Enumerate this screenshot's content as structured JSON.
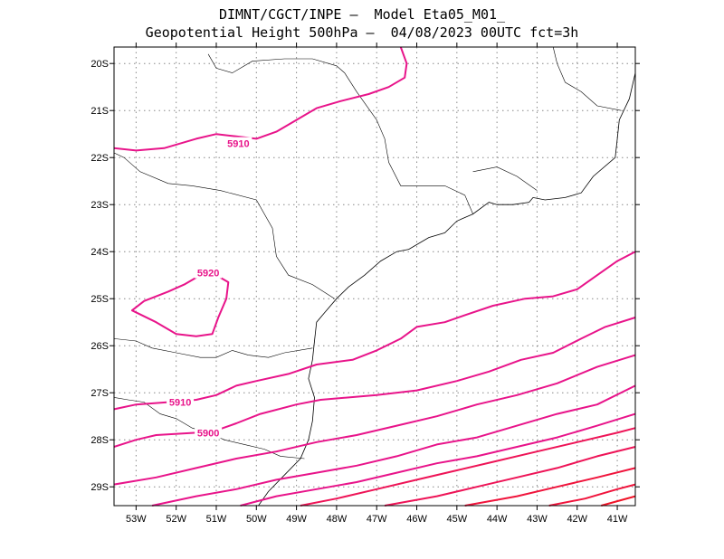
{
  "title_line1": "DIMNT/CGCT/INPE –  Model Eta05_M01_",
  "title_line2": "Geopotential Height 500hPa –  04/08/2023 00UTC fct=3h",
  "map": {
    "lon_range": [
      -53.55,
      -40.55
    ],
    "lat_range": [
      -29.4,
      -19.65
    ],
    "lat_ticks": [
      {
        "value": -20,
        "label": "20S"
      },
      {
        "value": -21,
        "label": "21S"
      },
      {
        "value": -22,
        "label": "22S"
      },
      {
        "value": -23,
        "label": "23S"
      },
      {
        "value": -24,
        "label": "24S"
      },
      {
        "value": -25,
        "label": "25S"
      },
      {
        "value": -26,
        "label": "26S"
      },
      {
        "value": -27,
        "label": "27S"
      },
      {
        "value": -28,
        "label": "28S"
      },
      {
        "value": -29,
        "label": "29S"
      }
    ],
    "lon_ticks": [
      {
        "value": -53,
        "label": "53W"
      },
      {
        "value": -52,
        "label": "52W"
      },
      {
        "value": -51,
        "label": "51W"
      },
      {
        "value": -50,
        "label": "50W"
      },
      {
        "value": -49,
        "label": "49W"
      },
      {
        "value": -48,
        "label": "48W"
      },
      {
        "value": -47,
        "label": "47W"
      },
      {
        "value": -46,
        "label": "46W"
      },
      {
        "value": -45,
        "label": "45W"
      },
      {
        "value": -44,
        "label": "44W"
      },
      {
        "value": -43,
        "label": "43W"
      },
      {
        "value": -42,
        "label": "42W"
      },
      {
        "value": -41,
        "label": "41W"
      }
    ],
    "contour_labels": [
      {
        "text": "5910",
        "lon": -50.45,
        "lat": -21.7,
        "color": "#e8148a"
      },
      {
        "text": "5920",
        "lon": -51.2,
        "lat": -24.45,
        "color": "#e8148a"
      },
      {
        "text": "5910",
        "lon": -51.9,
        "lat": -27.2,
        "color": "#e8148a"
      },
      {
        "text": "5900",
        "lon": -51.2,
        "lat": -27.85,
        "color": "#e8148a"
      }
    ],
    "contours": [
      {
        "color": "#e8148a",
        "points": [
          [
            -53.55,
            -21.8
          ],
          [
            -53.0,
            -21.85
          ],
          [
            -52.3,
            -21.8
          ],
          [
            -51.5,
            -21.6
          ],
          [
            -51.0,
            -21.5
          ],
          [
            -50.5,
            -21.55
          ],
          [
            -50.0,
            -21.6
          ],
          [
            -49.5,
            -21.45
          ],
          [
            -49.0,
            -21.2
          ],
          [
            -48.5,
            -20.95
          ],
          [
            -47.9,
            -20.8
          ],
          [
            -47.2,
            -20.65
          ],
          [
            -46.7,
            -20.5
          ],
          [
            -46.3,
            -20.3
          ],
          [
            -46.25,
            -20.0
          ],
          [
            -46.4,
            -19.65
          ]
        ]
      },
      {
        "color": "#e8148a",
        "points": [
          [
            -51.4,
            -24.5
          ],
          [
            -51.0,
            -24.5
          ],
          [
            -50.7,
            -24.65
          ],
          [
            -50.75,
            -25.0
          ],
          [
            -50.95,
            -25.4
          ],
          [
            -51.1,
            -25.75
          ],
          [
            -51.5,
            -25.8
          ],
          [
            -52.0,
            -25.75
          ],
          [
            -52.5,
            -25.5
          ],
          [
            -53.1,
            -25.25
          ],
          [
            -52.8,
            -25.05
          ],
          [
            -52.2,
            -24.85
          ],
          [
            -51.8,
            -24.7
          ],
          [
            -51.4,
            -24.5
          ]
        ]
      },
      {
        "color": "#e8148a",
        "points": [
          [
            -53.55,
            -27.35
          ],
          [
            -53.0,
            -27.25
          ],
          [
            -52.2,
            -27.2
          ],
          [
            -51.5,
            -27.15
          ],
          [
            -51.0,
            -27.05
          ],
          [
            -50.5,
            -26.85
          ],
          [
            -50.0,
            -26.75
          ],
          [
            -49.2,
            -26.6
          ],
          [
            -48.5,
            -26.4
          ],
          [
            -47.6,
            -26.3
          ],
          [
            -47.0,
            -26.1
          ],
          [
            -46.4,
            -25.85
          ],
          [
            -46.0,
            -25.6
          ],
          [
            -45.3,
            -25.5
          ],
          [
            -44.8,
            -25.35
          ],
          [
            -44.1,
            -25.15
          ],
          [
            -43.3,
            -25.0
          ],
          [
            -42.6,
            -24.95
          ],
          [
            -42.0,
            -24.8
          ],
          [
            -41.5,
            -24.5
          ],
          [
            -41.0,
            -24.2
          ],
          [
            -40.55,
            -24.0
          ]
        ]
      },
      {
        "color": "#e8148a",
        "points": [
          [
            -53.55,
            -28.15
          ],
          [
            -53.0,
            -28.0
          ],
          [
            -52.5,
            -27.9
          ],
          [
            -51.5,
            -27.85
          ],
          [
            -51.0,
            -27.8
          ],
          [
            -50.5,
            -27.65
          ],
          [
            -49.9,
            -27.45
          ],
          [
            -49.0,
            -27.25
          ],
          [
            -48.4,
            -27.15
          ],
          [
            -47.0,
            -27.05
          ],
          [
            -46.0,
            -26.95
          ],
          [
            -45.0,
            -26.75
          ],
          [
            -44.2,
            -26.55
          ],
          [
            -43.4,
            -26.3
          ],
          [
            -42.6,
            -26.15
          ],
          [
            -41.9,
            -25.85
          ],
          [
            -41.3,
            -25.6
          ],
          [
            -40.55,
            -25.4
          ]
        ]
      },
      {
        "color": "#e8148a",
        "points": [
          [
            -53.55,
            -28.95
          ],
          [
            -52.5,
            -28.8
          ],
          [
            -51.5,
            -28.6
          ],
          [
            -50.5,
            -28.4
          ],
          [
            -49.5,
            -28.25
          ],
          [
            -48.5,
            -28.05
          ],
          [
            -47.5,
            -27.9
          ],
          [
            -46.5,
            -27.7
          ],
          [
            -45.5,
            -27.5
          ],
          [
            -44.5,
            -27.25
          ],
          [
            -43.5,
            -27.05
          ],
          [
            -42.5,
            -26.8
          ],
          [
            -41.5,
            -26.45
          ],
          [
            -40.55,
            -26.2
          ]
        ]
      },
      {
        "color": "#e8148a",
        "points": [
          [
            -52.6,
            -29.4
          ],
          [
            -51.5,
            -29.2
          ],
          [
            -50.5,
            -29.05
          ],
          [
            -49.5,
            -28.85
          ],
          [
            -48.5,
            -28.7
          ],
          [
            -47.5,
            -28.55
          ],
          [
            -46.5,
            -28.35
          ],
          [
            -45.5,
            -28.1
          ],
          [
            -44.5,
            -27.95
          ],
          [
            -43.5,
            -27.7
          ],
          [
            -42.5,
            -27.45
          ],
          [
            -41.5,
            -27.25
          ],
          [
            -40.55,
            -26.85
          ]
        ]
      },
      {
        "color": "#e8148a",
        "points": [
          [
            -50.4,
            -29.4
          ],
          [
            -49.5,
            -29.2
          ],
          [
            -48.5,
            -29.05
          ],
          [
            -47.5,
            -28.9
          ],
          [
            -46.5,
            -28.7
          ],
          [
            -45.5,
            -28.5
          ],
          [
            -44.5,
            -28.35
          ],
          [
            -43.5,
            -28.15
          ],
          [
            -42.5,
            -27.95
          ],
          [
            -41.5,
            -27.7
          ],
          [
            -40.55,
            -27.45
          ]
        ]
      },
      {
        "color": "#ee1457",
        "points": [
          [
            -48.9,
            -29.4
          ],
          [
            -48.0,
            -29.25
          ],
          [
            -47.0,
            -29.05
          ],
          [
            -46.0,
            -28.85
          ],
          [
            -45.0,
            -28.65
          ],
          [
            -44.0,
            -28.45
          ],
          [
            -43.0,
            -28.25
          ],
          [
            -42.0,
            -28.05
          ],
          [
            -41.0,
            -27.85
          ],
          [
            -40.55,
            -27.75
          ]
        ]
      },
      {
        "color": "#ee1457",
        "points": [
          [
            -46.8,
            -29.4
          ],
          [
            -45.5,
            -29.2
          ],
          [
            -44.5,
            -29.0
          ],
          [
            -43.5,
            -28.8
          ],
          [
            -42.5,
            -28.6
          ],
          [
            -41.5,
            -28.35
          ],
          [
            -40.55,
            -28.15
          ]
        ]
      },
      {
        "color": "#f0143c",
        "points": [
          [
            -44.8,
            -29.4
          ],
          [
            -43.5,
            -29.2
          ],
          [
            -42.5,
            -29.0
          ],
          [
            -41.5,
            -28.8
          ],
          [
            -40.55,
            -28.6
          ]
        ]
      },
      {
        "color": "#f0143c",
        "points": [
          [
            -42.7,
            -29.4
          ],
          [
            -41.8,
            -29.25
          ],
          [
            -41.0,
            -29.05
          ],
          [
            -40.55,
            -28.95
          ]
        ]
      },
      {
        "color": "#f01428",
        "points": [
          [
            -41.4,
            -29.4
          ],
          [
            -40.55,
            -29.2
          ]
        ]
      }
    ],
    "coastline": [
      [
        -40.55,
        -20.2
      ],
      [
        -40.7,
        -20.75
      ],
      [
        -40.95,
        -21.2
      ],
      [
        -41.0,
        -21.6
      ],
      [
        -41.05,
        -22.0
      ],
      [
        -41.6,
        -22.4
      ],
      [
        -41.9,
        -22.75
      ],
      [
        -42.3,
        -22.85
      ],
      [
        -42.8,
        -22.9
      ],
      [
        -43.1,
        -22.85
      ],
      [
        -43.2,
        -22.95
      ],
      [
        -43.6,
        -23.0
      ],
      [
        -44.0,
        -23.0
      ],
      [
        -44.2,
        -22.95
      ],
      [
        -44.6,
        -23.2
      ],
      [
        -45.0,
        -23.35
      ],
      [
        -45.3,
        -23.6
      ],
      [
        -45.7,
        -23.7
      ],
      [
        -46.2,
        -23.95
      ],
      [
        -46.5,
        -24.0
      ],
      [
        -46.9,
        -24.2
      ],
      [
        -47.3,
        -24.5
      ],
      [
        -47.7,
        -24.75
      ],
      [
        -48.0,
        -25.0
      ],
      [
        -48.3,
        -25.3
      ],
      [
        -48.5,
        -25.5
      ],
      [
        -48.55,
        -25.9
      ],
      [
        -48.6,
        -26.3
      ],
      [
        -48.7,
        -26.7
      ],
      [
        -48.55,
        -27.1
      ],
      [
        -48.6,
        -27.6
      ],
      [
        -48.7,
        -28.0
      ],
      [
        -48.9,
        -28.4
      ],
      [
        -49.3,
        -28.75
      ],
      [
        -49.7,
        -29.1
      ],
      [
        -49.95,
        -29.4
      ]
    ],
    "borders": [
      [
        [
          -53.55,
          -25.85
        ],
        [
          -53.0,
          -25.9
        ],
        [
          -52.6,
          -26.05
        ],
        [
          -52.0,
          -26.15
        ],
        [
          -51.4,
          -26.25
        ],
        [
          -51.0,
          -26.25
        ],
        [
          -50.6,
          -26.1
        ],
        [
          -50.2,
          -26.2
        ],
        [
          -49.7,
          -26.25
        ],
        [
          -49.3,
          -26.15
        ],
        [
          -48.6,
          -26.05
        ]
      ],
      [
        [
          -53.55,
          -27.1
        ],
        [
          -53.2,
          -27.15
        ],
        [
          -52.8,
          -27.2
        ],
        [
          -52.4,
          -27.45
        ],
        [
          -52.0,
          -27.55
        ],
        [
          -51.6,
          -27.75
        ],
        [
          -51.2,
          -27.85
        ],
        [
          -50.8,
          -28.0
        ],
        [
          -50.3,
          -28.1
        ],
        [
          -49.8,
          -28.2
        ],
        [
          -49.4,
          -28.35
        ],
        [
          -48.8,
          -28.4
        ]
      ],
      [
        [
          -48.05,
          -25.0
        ],
        [
          -48.6,
          -24.7
        ],
        [
          -49.2,
          -24.5
        ],
        [
          -49.5,
          -24.1
        ],
        [
          -49.6,
          -23.5
        ],
        [
          -50.0,
          -22.9
        ],
        [
          -50.9,
          -22.7
        ],
        [
          -51.6,
          -22.6
        ],
        [
          -52.2,
          -22.55
        ],
        [
          -52.9,
          -22.3
        ],
        [
          -53.3,
          -22.0
        ],
        [
          -53.55,
          -21.9
        ]
      ],
      [
        [
          -44.6,
          -23.2
        ],
        [
          -44.8,
          -22.8
        ],
        [
          -45.3,
          -22.6
        ],
        [
          -46.0,
          -22.6
        ],
        [
          -46.4,
          -22.6
        ],
        [
          -46.7,
          -22.1
        ],
        [
          -46.8,
          -21.6
        ],
        [
          -47.0,
          -21.2
        ],
        [
          -47.5,
          -20.6
        ],
        [
          -47.8,
          -20.2
        ],
        [
          -48.0,
          -20.05
        ],
        [
          -48.6,
          -19.9
        ],
        [
          -49.3,
          -19.9
        ],
        [
          -50.1,
          -19.95
        ],
        [
          -50.6,
          -20.2
        ],
        [
          -51.0,
          -20.1
        ],
        [
          -51.2,
          -19.8
        ]
      ],
      [
        [
          -40.9,
          -21.0
        ],
        [
          -41.5,
          -20.9
        ],
        [
          -41.9,
          -20.6
        ],
        [
          -42.3,
          -20.4
        ],
        [
          -42.5,
          -20.0
        ],
        [
          -42.6,
          -19.65
        ]
      ],
      [
        [
          -43.0,
          -22.7
        ],
        [
          -43.5,
          -22.4
        ],
        [
          -44.0,
          -22.2
        ],
        [
          -44.6,
          -22.3
        ]
      ]
    ]
  }
}
